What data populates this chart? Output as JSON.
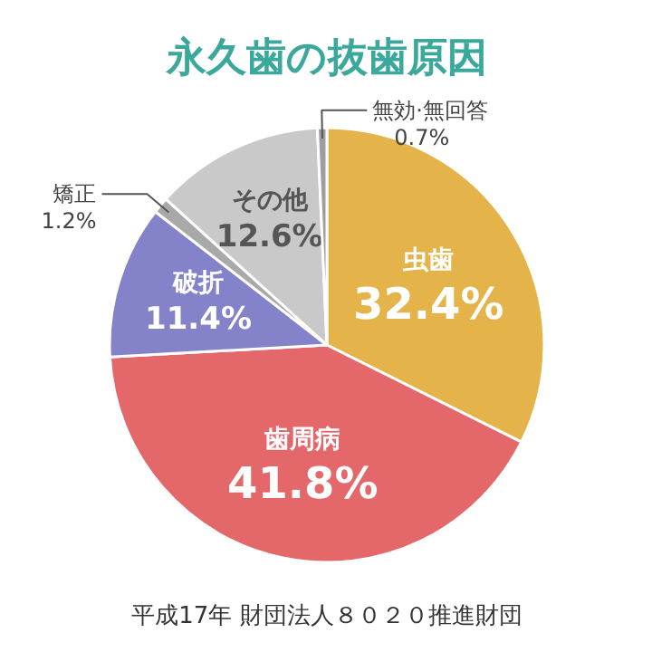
{
  "chart_data": {
    "type": "pie",
    "title": "永久歯の抜歯原因",
    "categories": [
      "虫歯",
      "歯周病",
      "破折",
      "矯正",
      "その他",
      "無効·無回答"
    ],
    "values": [
      32.4,
      41.8,
      11.4,
      1.2,
      12.6,
      0.7
    ],
    "value_labels": [
      "32.4%",
      "41.8%",
      "11.4%",
      "1.2%",
      "12.6%",
      "0.7%"
    ],
    "colors": [
      "#e4b44a",
      "#e4676a",
      "#8482c9",
      "#a9a9a9",
      "#c9c9c9",
      "#9e9e9e"
    ],
    "annotations": [
      "平成17年 財団法人８０２０推進財団"
    ]
  }
}
